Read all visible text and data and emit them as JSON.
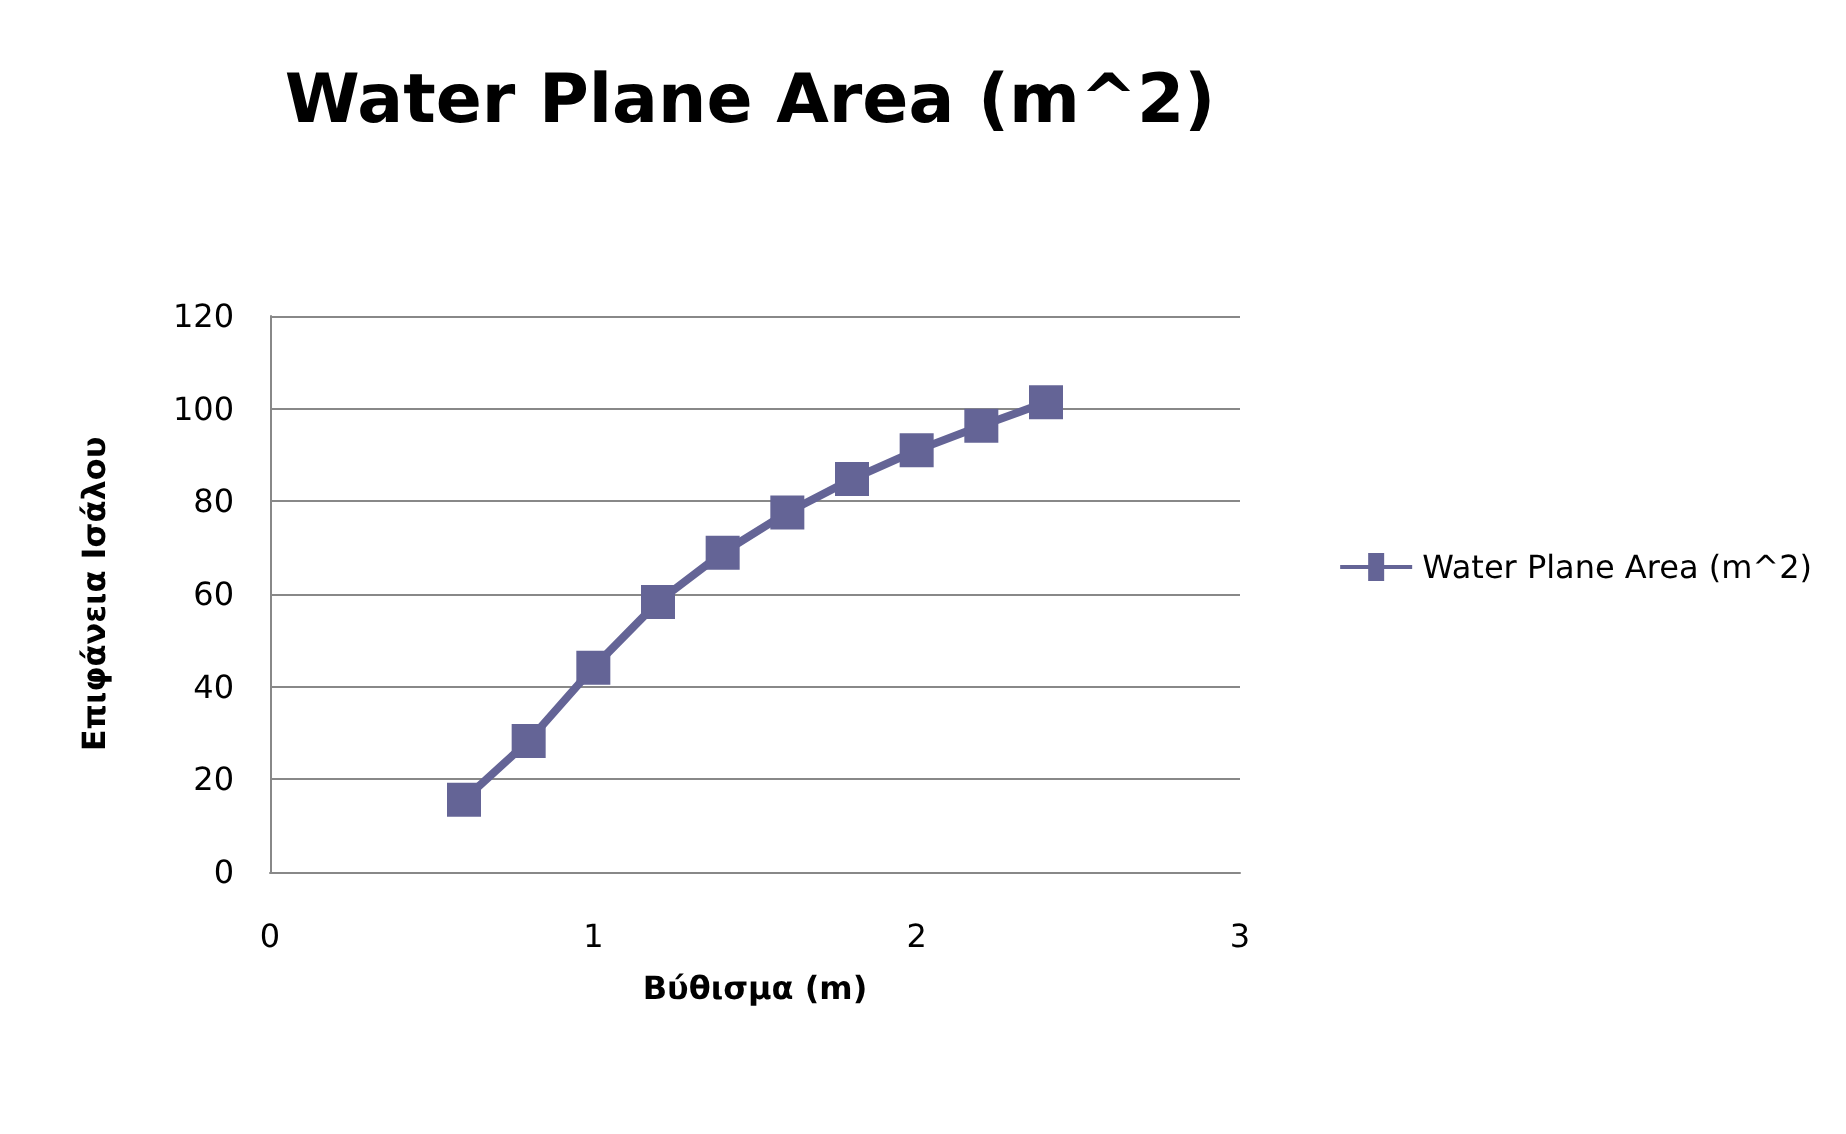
{
  "chart_data": {
    "type": "line",
    "title": "Water Plane Area (m^2)",
    "xlabel": "Βύθισμα (m)",
    "ylabel": "Επιφάνεια Ισάλου",
    "x": [
      0.6,
      0.8,
      1.0,
      1.2,
      1.4,
      1.6,
      1.8,
      2.0,
      2.2,
      2.4
    ],
    "series": [
      {
        "name": "Water Plane Area (m^2)",
        "color": "#646496",
        "values": [
          15.6,
          28.3,
          44.1,
          58.3,
          68.9,
          77.6,
          84.8,
          91.0,
          96.3,
          101.4
        ]
      }
    ],
    "xlim": [
      0,
      3
    ],
    "xticks": [
      0,
      1,
      2,
      3
    ],
    "ylim": [
      0,
      120
    ],
    "yticks": [
      0,
      20,
      40,
      60,
      80,
      100,
      120
    ],
    "grid": "y",
    "legend": "right",
    "marker": "square",
    "line_style": "solid"
  }
}
